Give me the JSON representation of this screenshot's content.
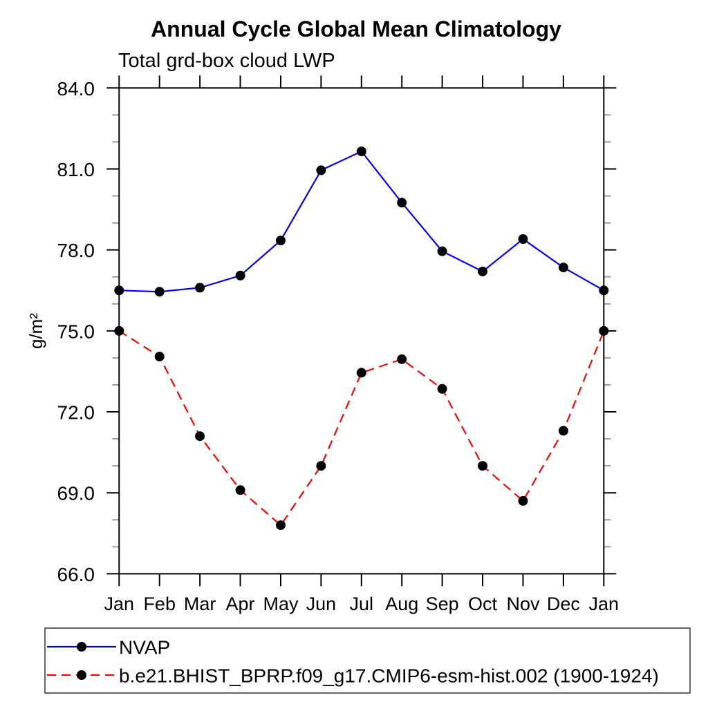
{
  "chart_data": {
    "type": "line",
    "title": "Annual Cycle Global Mean Climatology",
    "subtitle": "Total grd-box cloud LWP",
    "xlabel": "",
    "ylabel": "g/m²",
    "ylim": [
      66.0,
      84.0
    ],
    "ytick_major_step": 3.0,
    "ytick_minor_step": 1.0,
    "ytick_labels": [
      "66.0",
      "69.0",
      "72.0",
      "75.0",
      "78.0",
      "81.0",
      "84.0"
    ],
    "grid": false,
    "legend_position": "bottom-left-box",
    "categories": [
      "Jan",
      "Feb",
      "Mar",
      "Apr",
      "May",
      "Jun",
      "Jul",
      "Aug",
      "Sep",
      "Oct",
      "Nov",
      "Dec",
      "Jan"
    ],
    "series": [
      {
        "name": "NVAP",
        "color": "#0000ff",
        "line_style": "solid",
        "marker": "filled-circle",
        "marker_color": "#000000",
        "values": [
          76.5,
          76.45,
          76.6,
          77.05,
          78.35,
          80.95,
          81.65,
          79.75,
          77.95,
          77.2,
          78.4,
          77.35,
          76.5
        ]
      },
      {
        "name": "b.e21.BHIST_BPRP.f09_g17.CMIP6-esm-hist.002 (1900-1924)",
        "color": "#ff0000",
        "line_style": "dashed",
        "marker": "filled-circle",
        "marker_color": "#000000",
        "values": [
          75.0,
          74.05,
          71.1,
          69.1,
          67.8,
          70.0,
          73.45,
          73.95,
          72.85,
          70.0,
          68.7,
          71.3,
          75.0
        ]
      }
    ],
    "axis_color": "#000000",
    "minor_tick_color": "#999999"
  }
}
